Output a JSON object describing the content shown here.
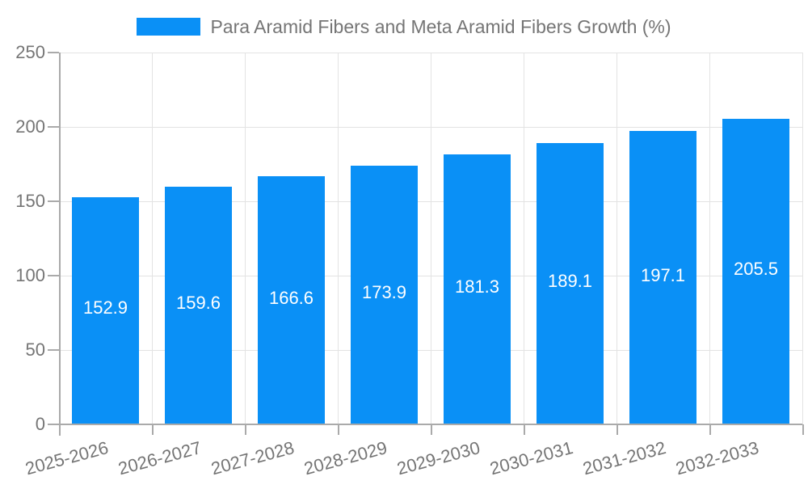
{
  "legend": {
    "label": "Para Aramid Fibers and Meta Aramid Fibers Growth (%)"
  },
  "chart_data": {
    "type": "bar",
    "title": "Para Aramid Fibers and Meta Aramid Fibers Growth (%)",
    "series_name": "Para Aramid Fibers and Meta Aramid Fibers Growth (%)",
    "categories": [
      "2025-2026",
      "2026-2027",
      "2027-2028",
      "2028-2029",
      "2029-2030",
      "2030-2031",
      "2031-2032",
      "2032-2033"
    ],
    "values": [
      152.9,
      159.6,
      166.6,
      173.9,
      181.3,
      189.1,
      197.1,
      205.5
    ],
    "value_labels": [
      "152.9",
      "159.6",
      "166.6",
      "173.9",
      "181.3",
      "189.1",
      "197.1",
      "205.5"
    ],
    "xlabel": "",
    "ylabel": "",
    "ylim": [
      0,
      250
    ],
    "yticks": [
      0,
      50,
      100,
      150,
      200,
      250
    ],
    "grid": true,
    "legend_position": "top",
    "bar_color": "#0a90f6",
    "value_label_color": "#ffffff",
    "axis_line_color": "#aaaaaa",
    "grid_line_color": "#e3e3e3",
    "tick_label_color": "#757575",
    "background_color": "#ffffff"
  }
}
